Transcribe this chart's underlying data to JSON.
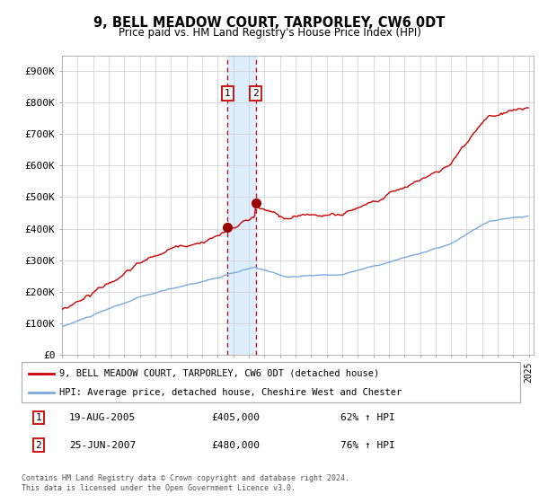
{
  "title": "9, BELL MEADOW COURT, TARPORLEY, CW6 0DT",
  "subtitle": "Price paid vs. HM Land Registry's House Price Index (HPI)",
  "legend_line1": "9, BELL MEADOW COURT, TARPORLEY, CW6 0DT (detached house)",
  "legend_line2": "HPI: Average price, detached house, Cheshire West and Chester",
  "transaction1_date": "19-AUG-2005",
  "transaction1_price": 405000,
  "transaction1_hpi": "62% ↑ HPI",
  "transaction2_date": "25-JUN-2007",
  "transaction2_price": 480000,
  "transaction2_hpi": "76% ↑ HPI",
  "footer1": "Contains HM Land Registry data © Crown copyright and database right 2024.",
  "footer2": "This data is licensed under the Open Government Licence v3.0.",
  "red_color": "#cc0000",
  "blue_color": "#7aaadd",
  "background_color": "#ffffff",
  "grid_color": "#cccccc",
  "highlight_color": "#ddeeff",
  "ylim": [
    0,
    950000
  ],
  "yticks": [
    0,
    100000,
    200000,
    300000,
    400000,
    500000,
    600000,
    700000,
    800000,
    900000
  ],
  "ytick_labels": [
    "£0",
    "£100K",
    "£200K",
    "£300K",
    "£400K",
    "£500K",
    "£600K",
    "£700K",
    "£800K",
    "£900K"
  ],
  "year_start": 1995,
  "year_end": 2025,
  "t1_year": 2005.625,
  "t2_year": 2007.458,
  "t1_price": 405000,
  "t2_price": 480000
}
